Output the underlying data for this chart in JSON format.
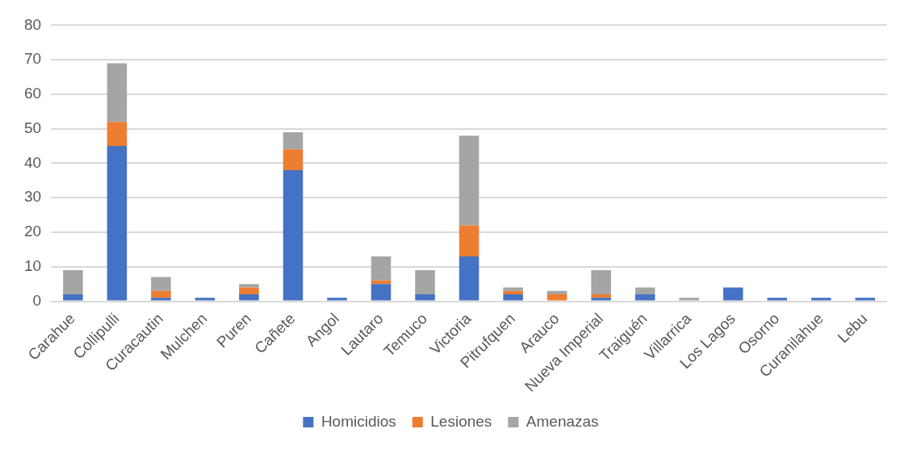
{
  "chart_data": {
    "type": "bar",
    "stacked": true,
    "categories": [
      "Carahue",
      "Collipulli",
      "Curacautin",
      "Mulchen",
      "Puren",
      "Cañete",
      "Angol",
      "Lautaro",
      "Temuco",
      "Victoria",
      "Pitrufquen",
      "Arauco",
      "Nueva Imperial",
      "Traiguén",
      "Villarrica",
      "Los Lagos",
      "Osorno",
      "Curanilahue",
      "Lebu"
    ],
    "series": [
      {
        "name": "Homicidios",
        "color": "#4472c4",
        "values": [
          2,
          45,
          1,
          1,
          2,
          38,
          1,
          5,
          2,
          13,
          2,
          0,
          1,
          2,
          0,
          4,
          1,
          1,
          1
        ]
      },
      {
        "name": "Lesiones",
        "color": "#ed7d31",
        "values": [
          0,
          7,
          2,
          0,
          2,
          6,
          0,
          1,
          0,
          9,
          1,
          2,
          1,
          0,
          0,
          0,
          0,
          0,
          0
        ]
      },
      {
        "name": "Amenazas",
        "color": "#a5a5a5",
        "values": [
          7,
          17,
          4,
          0,
          1,
          5,
          0,
          7,
          7,
          26,
          1,
          1,
          7,
          2,
          1,
          0,
          0,
          0,
          0
        ]
      }
    ],
    "ylim": [
      0,
      80
    ],
    "yticks": [
      0,
      10,
      20,
      30,
      40,
      50,
      60,
      70,
      80
    ],
    "grid": "y",
    "legend": "bottom"
  }
}
